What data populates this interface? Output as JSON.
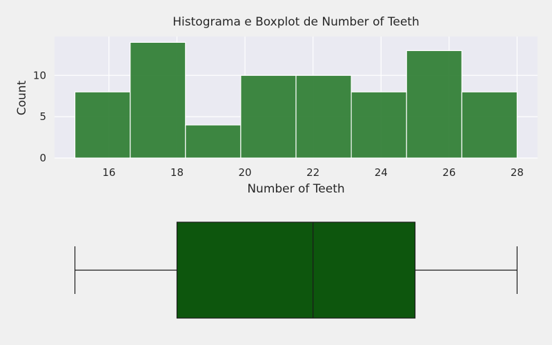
{
  "chart_data": [
    {
      "type": "histogram",
      "title": "Histograma e Boxplot de Number of Teeth",
      "xlabel": "Number of Teeth",
      "ylabel": "Count",
      "bin_edges": [
        15,
        16.625,
        18.25,
        19.875,
        21.5,
        23.125,
        24.75,
        26.375,
        28
      ],
      "counts": [
        8,
        14,
        4,
        10,
        10,
        8,
        13,
        8
      ],
      "xlim": [
        14.4,
        28.6
      ],
      "ylim": [
        0,
        14.7
      ],
      "xticks": [
        16,
        18,
        20,
        22,
        24,
        26,
        28
      ],
      "yticks": [
        0,
        5,
        10
      ],
      "bar_color": "#2e7d32",
      "plot_background": "#eaeaf2",
      "grid": true
    },
    {
      "type": "boxplot",
      "min": 15,
      "q1": 18,
      "median": 22,
      "q3": 25,
      "max": 28,
      "xlim": [
        14.4,
        28.6
      ],
      "box_color": "#0d560d"
    }
  ],
  "labels": {
    "title": "Histograma e Boxplot de Number of Teeth",
    "xlabel": "Number of Teeth",
    "ylabel": "Count"
  }
}
